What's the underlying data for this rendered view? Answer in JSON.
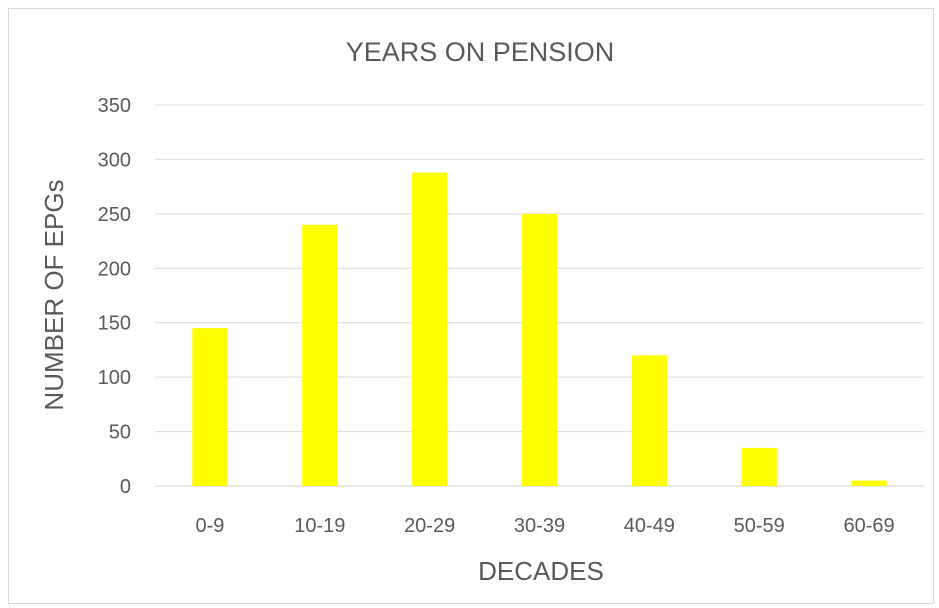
{
  "chart_data": {
    "type": "bar",
    "title": "YEARS ON PENSION",
    "xlabel": "DECADES",
    "ylabel": "NUMBER OF EPGs",
    "categories": [
      "0-9",
      "10-19",
      "20-29",
      "30-39",
      "40-49",
      "50-59",
      "60-69"
    ],
    "values": [
      145,
      240,
      288,
      250,
      120,
      35,
      5
    ],
    "ylim": [
      0,
      350
    ],
    "yticks": [
      0,
      50,
      100,
      150,
      200,
      250,
      300,
      350
    ],
    "grid": true,
    "legend": "none",
    "colors": {
      "bar": "#ffff00",
      "grid": "#d9d9d9",
      "text": "#595959"
    }
  }
}
